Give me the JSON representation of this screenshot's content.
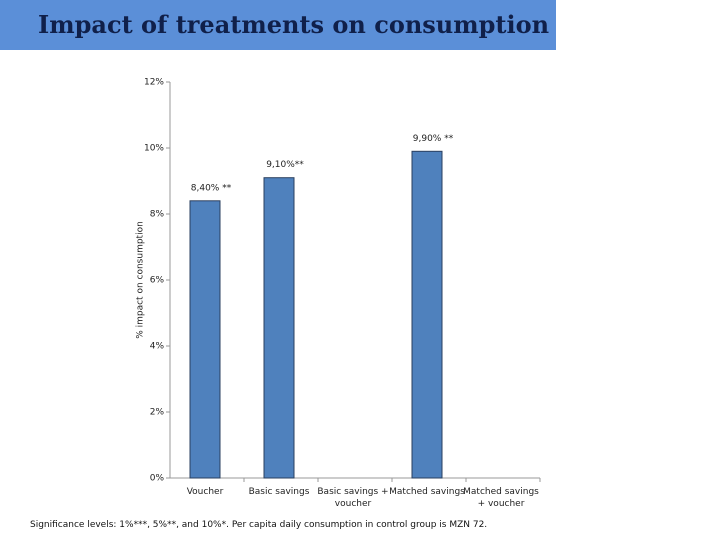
{
  "chart_data": {
    "type": "bar",
    "title": "Impact of treatments on consumption",
    "y_label": "% impact on consumption",
    "categories": [
      "Voucher",
      "Basic savings",
      "Basic savings + voucher",
      "Matched savings",
      "Matched savings + voucher"
    ],
    "values": [
      8.4,
      9.1,
      null,
      9.9,
      null
    ],
    "value_labels": [
      "8,40% **",
      "9,10%**",
      null,
      "9,90% **",
      null
    ],
    "color": "#4f81bd",
    "ylim": [
      0,
      12
    ],
    "yticks": [
      {
        "value": 0,
        "label": "0%"
      },
      {
        "value": 2,
        "label": "2%"
      },
      {
        "value": 4,
        "label": "4%"
      },
      {
        "value": 6,
        "label": "6%"
      },
      {
        "value": 8,
        "label": "8%"
      },
      {
        "value": 10,
        "label": "10%"
      },
      {
        "value": 12,
        "label": "12%"
      }
    ],
    "grid": false,
    "footnote": "Significance levels: 1%***, 5%**, and 10%*. Per capita daily consumption in control group is MZN 72."
  }
}
